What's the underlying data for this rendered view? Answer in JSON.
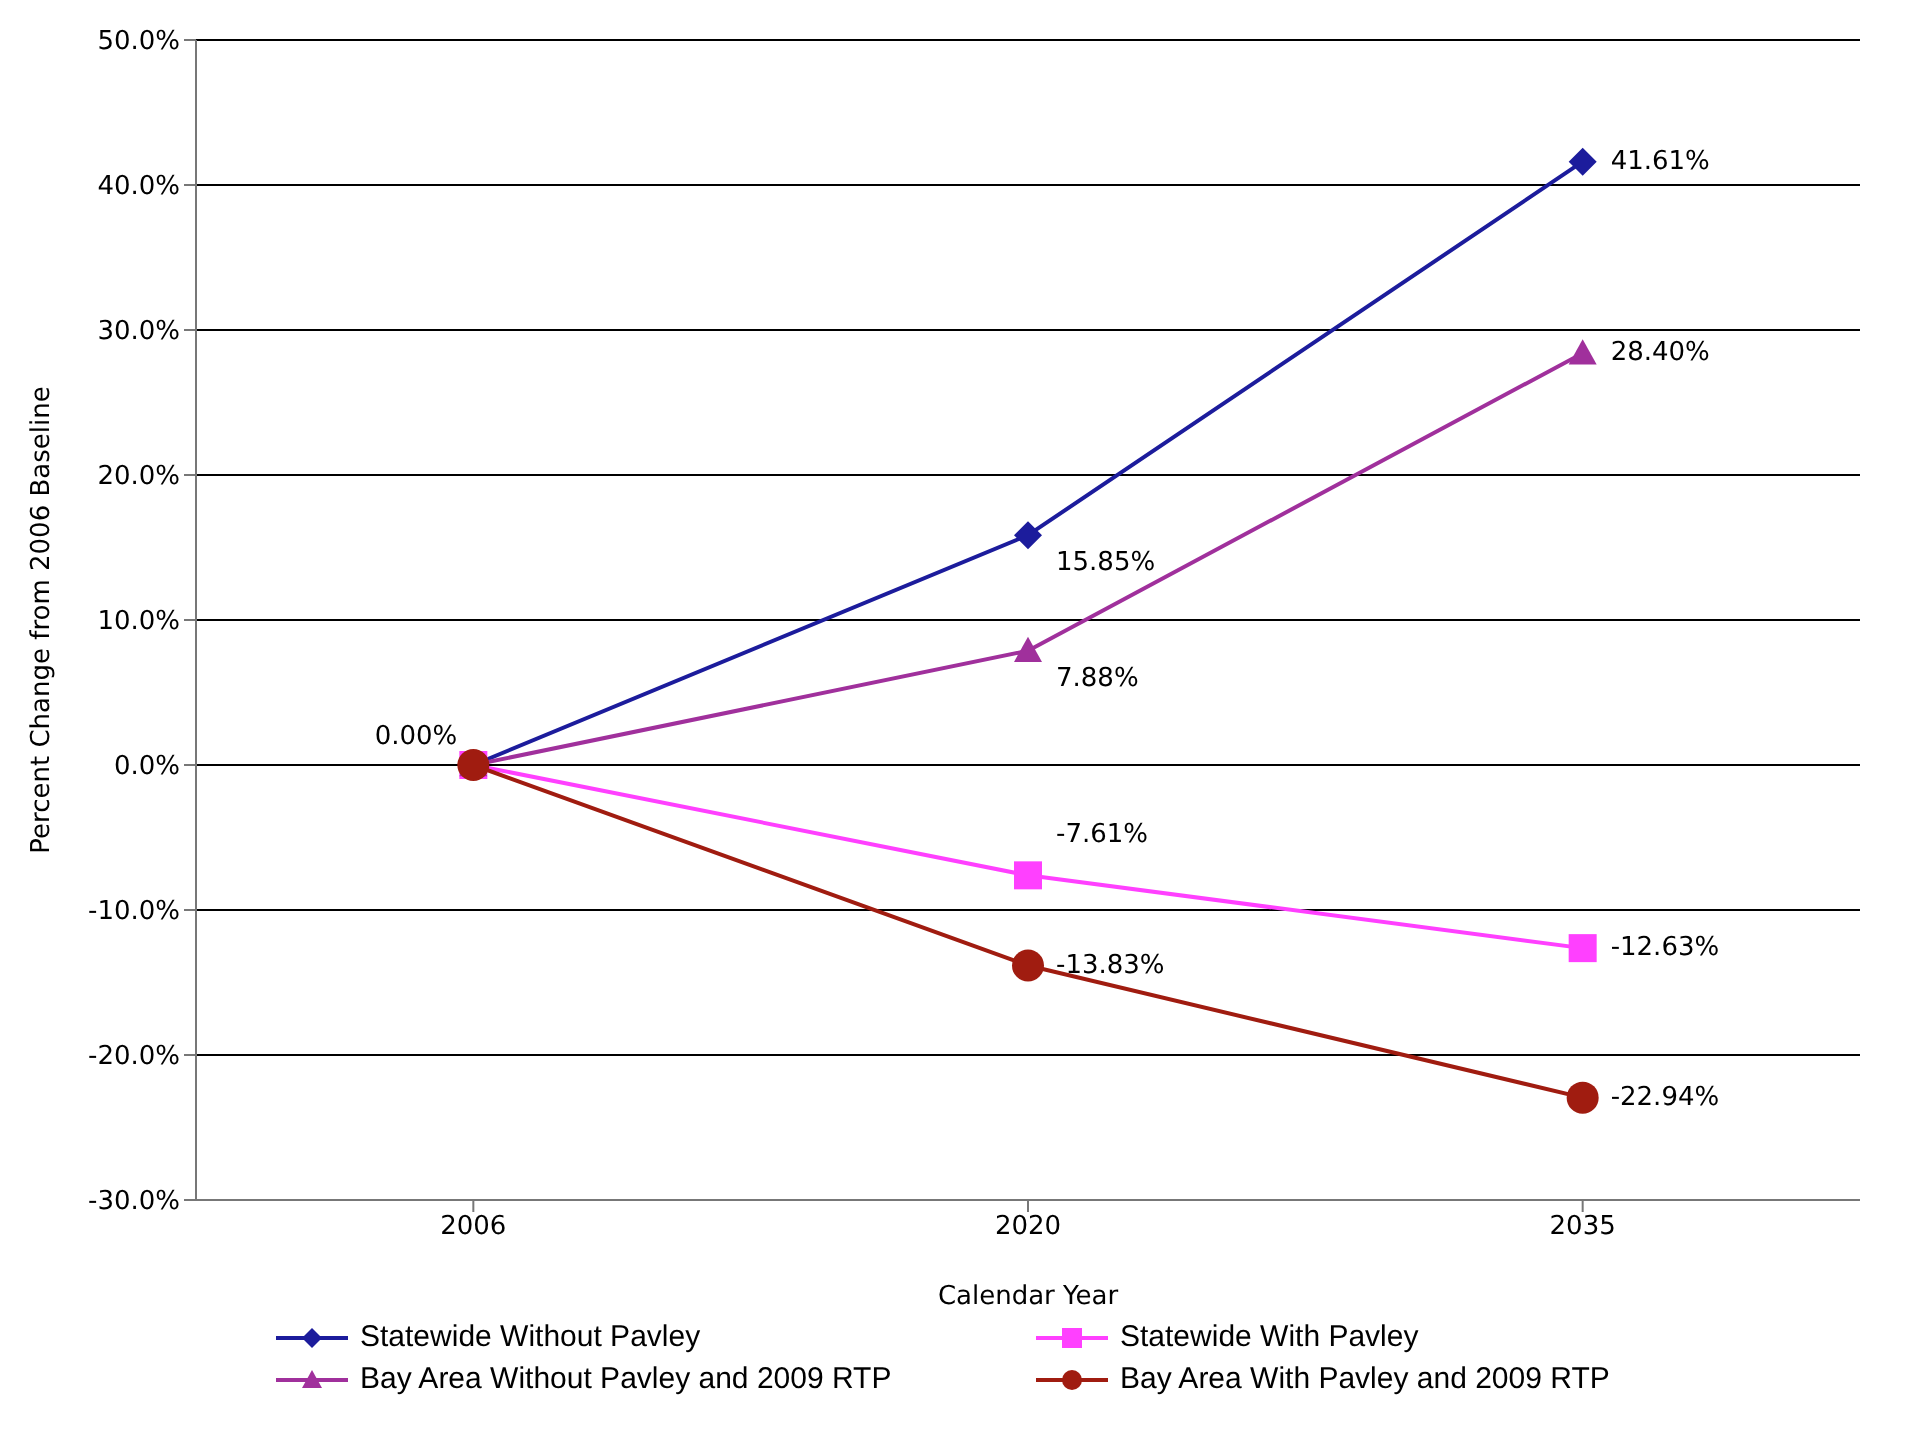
{
  "chart_data": {
    "type": "line",
    "xlabel": "Calendar Year",
    "ylabel": "Percent Change from 2006 Baseline",
    "categories": [
      "2006",
      "2020",
      "2035"
    ],
    "series": [
      {
        "name": "Statewide Without Pavley",
        "color": "#1c1c9c",
        "marker": "diamond",
        "values": [
          0,
          15.85,
          41.61
        ],
        "value_labels": [
          "0.00%",
          "15.85%",
          "41.61%"
        ]
      },
      {
        "name": "Statewide With Pavley",
        "color": "#ff40ff",
        "marker": "square",
        "values": [
          0,
          -7.61,
          -12.63
        ],
        "value_labels": [
          null,
          "-7.61%",
          "-12.63%"
        ]
      },
      {
        "name": "Bay Area Without Pavley and 2009 RTP",
        "color": "#a0309c",
        "marker": "triangle",
        "values": [
          0,
          7.88,
          28.4
        ],
        "value_labels": [
          null,
          "7.88%",
          "28.40%"
        ]
      },
      {
        "name": "Bay Area With Pavley and 2009 RTP",
        "color": "#a01c10",
        "marker": "circle",
        "values": [
          0,
          -13.83,
          -22.94
        ],
        "value_labels": [
          null,
          "-13.83%",
          "-22.94%"
        ]
      }
    ],
    "ylim": [
      -30,
      50
    ],
    "yticks": [
      {
        "value": -30,
        "label": "-30.0%"
      },
      {
        "value": -20,
        "label": "-20.0%"
      },
      {
        "value": -10,
        "label": "-10.0%"
      },
      {
        "value": 0,
        "label": "0.0%"
      },
      {
        "value": 10,
        "label": "10.0%"
      },
      {
        "value": 20,
        "label": "20.0%"
      },
      {
        "value": 30,
        "label": "30.0%"
      },
      {
        "value": 40,
        "label": "40.0%"
      },
      {
        "value": 50,
        "label": "50.0%"
      }
    ],
    "grid": "y",
    "legend": "bottom"
  }
}
